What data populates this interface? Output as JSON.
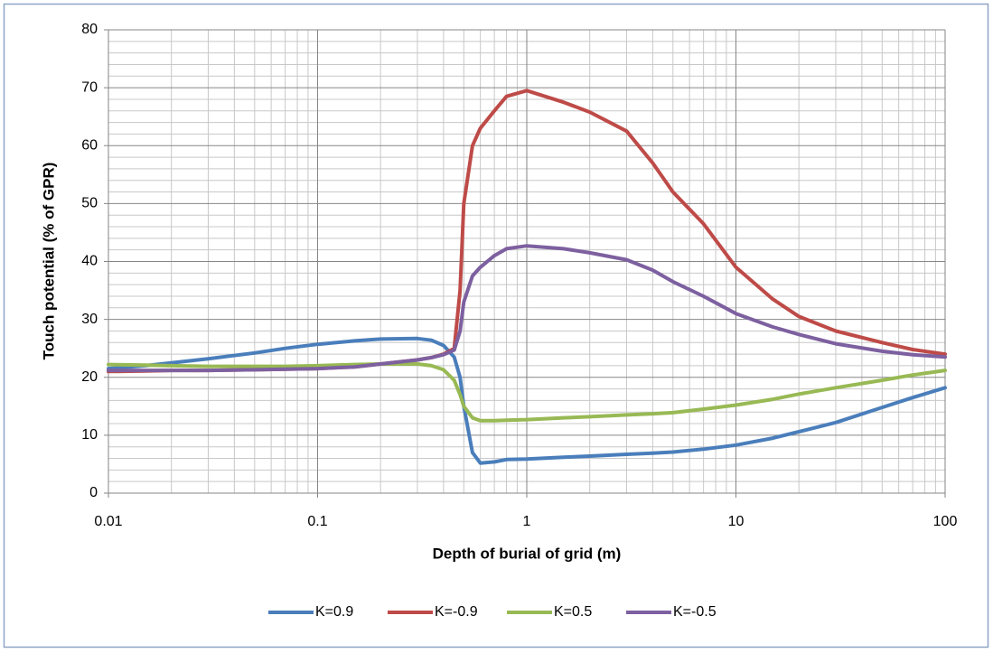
{
  "chart_data": {
    "type": "line",
    "x_label": "Depth of burial of grid (m)",
    "y_label": "Touch potential (% of GPR)",
    "x_log": true,
    "x": [
      0.01,
      0.015,
      0.02,
      0.03,
      0.05,
      0.07,
      0.1,
      0.15,
      0.2,
      0.3,
      0.35,
      0.4,
      0.45,
      0.48,
      0.5,
      0.55,
      0.6,
      0.7,
      0.8,
      1,
      1.5,
      2,
      3,
      4,
      5,
      7,
      10,
      15,
      20,
      30,
      50,
      70,
      100
    ],
    "series": [
      {
        "name": "K=0.9",
        "color": "#4a7ebb",
        "values": [
          21.5,
          22,
          22.5,
          23.2,
          24.2,
          25,
          25.7,
          26.3,
          26.6,
          26.7,
          26.4,
          25.5,
          23.5,
          20,
          15,
          7,
          5.2,
          5.4,
          5.8,
          5.9,
          6.2,
          6.4,
          6.7,
          6.9,
          7.1,
          7.6,
          8.3,
          9.5,
          10.6,
          12.2,
          14.8,
          16.5,
          18.2
        ]
      },
      {
        "name": "K=-0.9",
        "color": "#be4b48",
        "values": [
          21,
          21.1,
          21.2,
          21.2,
          21.3,
          21.4,
          21.5,
          21.8,
          22.3,
          23,
          23.4,
          24,
          25,
          35,
          50,
          60,
          63,
          66,
          68.5,
          69.5,
          67.5,
          65.8,
          62.5,
          57,
          52,
          46.5,
          39,
          33.5,
          30.5,
          28,
          26,
          24.8,
          24
        ]
      },
      {
        "name": "K=0.5",
        "color": "#98b954",
        "values": [
          22.2,
          22.1,
          22,
          21.9,
          21.9,
          21.9,
          22,
          22.2,
          22.3,
          22.3,
          22,
          21.3,
          19.5,
          17,
          15,
          13,
          12.5,
          12.5,
          12.6,
          12.7,
          13,
          13.2,
          13.5,
          13.7,
          13.9,
          14.5,
          15.2,
          16.2,
          17.1,
          18.2,
          19.5,
          20.4,
          21.2
        ]
      },
      {
        "name": "K=-0.5",
        "color": "#7d60a0",
        "values": [
          21.2,
          21.2,
          21.2,
          21.2,
          21.3,
          21.4,
          21.5,
          21.8,
          22.3,
          23,
          23.4,
          23.9,
          24.7,
          28,
          33,
          37.5,
          39,
          41,
          42.2,
          42.7,
          42.2,
          41.5,
          40.3,
          38.5,
          36.5,
          34,
          31,
          28.7,
          27.4,
          25.8,
          24.5,
          23.9,
          23.5
        ]
      }
    ],
    "xlim": [
      0.01,
      100
    ],
    "xticks": [
      0.01,
      0.1,
      1,
      10,
      100
    ],
    "ylim": [
      0,
      80
    ],
    "yticks": [
      0,
      10,
      20,
      30,
      40,
      50,
      60,
      70,
      80
    ],
    "grid": true,
    "minor_grid": true,
    "legend": "bottom"
  }
}
